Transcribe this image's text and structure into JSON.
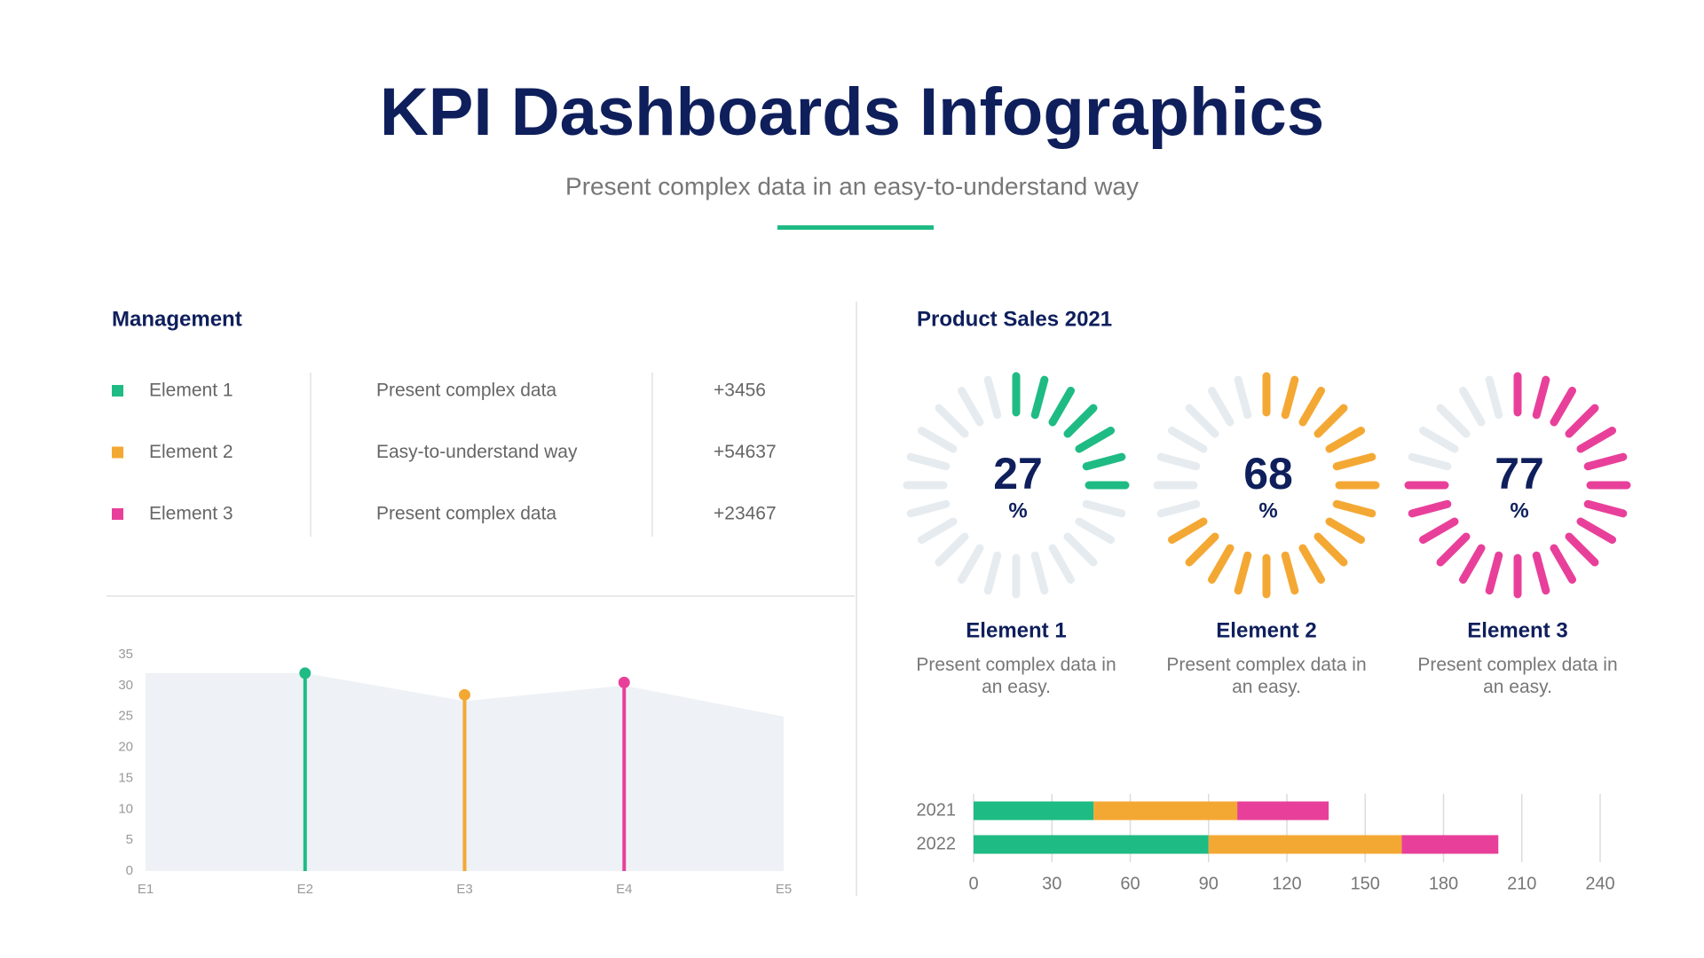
{
  "header": {
    "title": "KPI Dashboards Infographics",
    "subtitle": "Present complex data in an easy-to-understand way"
  },
  "management": {
    "title": "Management",
    "colors": [
      "#1fbb84",
      "#f4a834",
      "#e8409a"
    ],
    "rows": [
      [
        "Element 1",
        "Present complex data",
        "+3456"
      ],
      [
        "Element 2",
        "Easy-to-understand way",
        "+54637"
      ],
      [
        "Element 3",
        "Present complex data",
        "+23467"
      ]
    ]
  },
  "chart_data": [
    {
      "type": "area",
      "categories": [
        "E1",
        "E2",
        "E3",
        "E4",
        "E5"
      ],
      "series": [
        {
          "mark": "area",
          "color": "#eef1f5",
          "values": [
            32,
            32,
            27.5,
            30,
            25
          ]
        },
        {
          "mark": "stem",
          "colors": [
            null,
            "#1fbb84",
            "#f4a834",
            "#e8409a",
            null
          ],
          "values": [
            null,
            32,
            28.5,
            30.5,
            null
          ]
        }
      ],
      "ylim": [
        0,
        35
      ],
      "yticks": [
        0,
        5,
        10,
        15,
        20,
        25,
        30,
        35
      ]
    },
    {
      "type": "gauge",
      "title": "Product Sales 2021",
      "unit": "%",
      "categories": [
        "Element 1",
        "Element 2",
        "Element 3"
      ],
      "descriptions": [
        "Present complex data in an easy.",
        "Present complex data in an easy.",
        "Present complex data in an easy."
      ],
      "values": [
        27,
        68,
        77
      ],
      "colors": [
        "#1fbb84",
        "#f4a834",
        "#e8409a"
      ],
      "ylim": [
        0,
        100
      ]
    },
    {
      "type": "hbar",
      "stacked": true,
      "categories": [
        "2021",
        "2022"
      ],
      "series": [
        {
          "color": "#1fbb84",
          "values": [
            46,
            90
          ]
        },
        {
          "color": "#f4a834",
          "values": [
            55,
            74
          ]
        },
        {
          "color": "#e8409a",
          "values": [
            35,
            37
          ]
        }
      ],
      "xlim": [
        0,
        240
      ],
      "xticks": [
        0,
        30,
        60,
        90,
        120,
        150,
        180,
        210,
        240
      ],
      "grid": true
    }
  ]
}
